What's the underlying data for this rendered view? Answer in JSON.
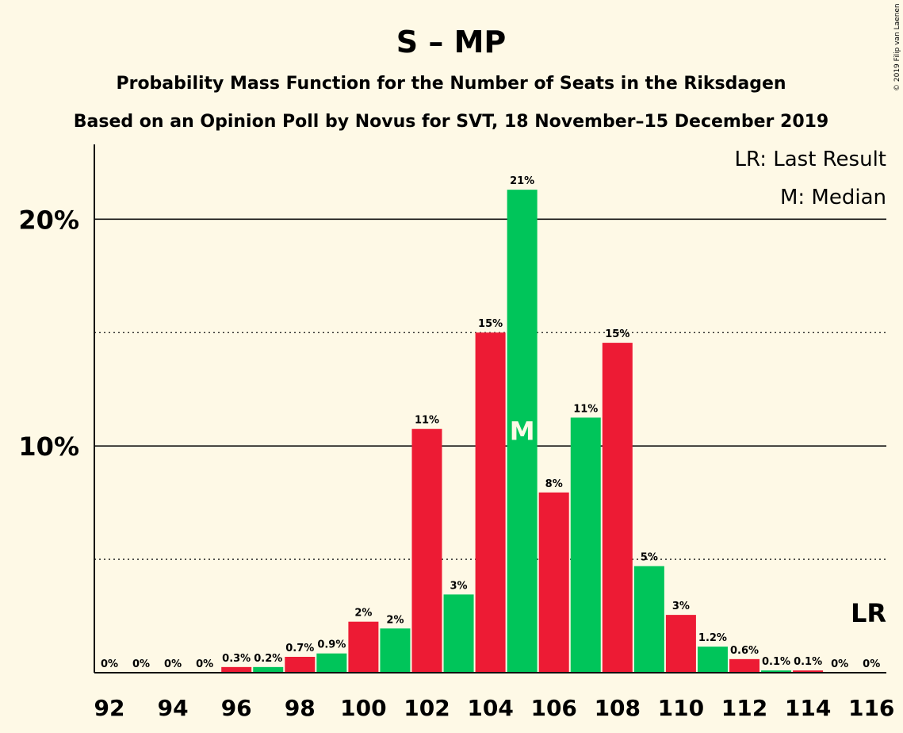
{
  "chart_data": {
    "type": "bar",
    "title": "S – MP",
    "subtitle": "Probability Mass Function for the Number of Seats in the Riksdagen",
    "subtitle2": "Based on an Opinion Poll by Novus for SVT, 18 November–15 December 2019",
    "copyright": "© 2019 Filip van Laenen",
    "legend": [
      "LR: Last Result",
      "M: Median"
    ],
    "legend_placement": "top-right",
    "ylim": [
      0,
      23.3
    ],
    "yticks": [
      {
        "value": 10,
        "label": "10%"
      },
      {
        "value": 20,
        "label": "20%"
      }
    ],
    "dotted_gridlines": [
      5,
      15
    ],
    "xticks": [
      "92",
      "94",
      "96",
      "98",
      "100",
      "102",
      "104",
      "106",
      "108",
      "110",
      "112",
      "114",
      "116"
    ],
    "categories": [
      92,
      93,
      94,
      95,
      96,
      97,
      98,
      99,
      100,
      101,
      102,
      103,
      104,
      105,
      106,
      107,
      108,
      109,
      110,
      111,
      112,
      113,
      114,
      115,
      116
    ],
    "values": [
      0,
      0,
      0,
      0,
      0.25,
      0.25,
      0.7,
      0.85,
      2.25,
      1.95,
      10.75,
      3.45,
      15.0,
      21.3,
      7.95,
      11.25,
      14.55,
      4.7,
      2.55,
      1.15,
      0.6,
      0.1,
      0.1,
      0,
      0
    ],
    "labels": [
      "0%",
      "0%",
      "0%",
      "0%",
      "0.3%",
      "0.2%",
      "0.7%",
      "0.9%",
      "2%",
      "2%",
      "11%",
      "3%",
      "15%",
      "21%",
      "8%",
      "11%",
      "15%",
      "5%",
      "3%",
      "1.2%",
      "0.6%",
      "0.1%",
      "0.1%",
      "0%",
      "0%"
    ],
    "colors": [
      "#ed1b34",
      "#00c55a"
    ],
    "median_seat": 105,
    "median_marker": "M",
    "last_result_seat": 116,
    "last_result_marker": "LR"
  }
}
